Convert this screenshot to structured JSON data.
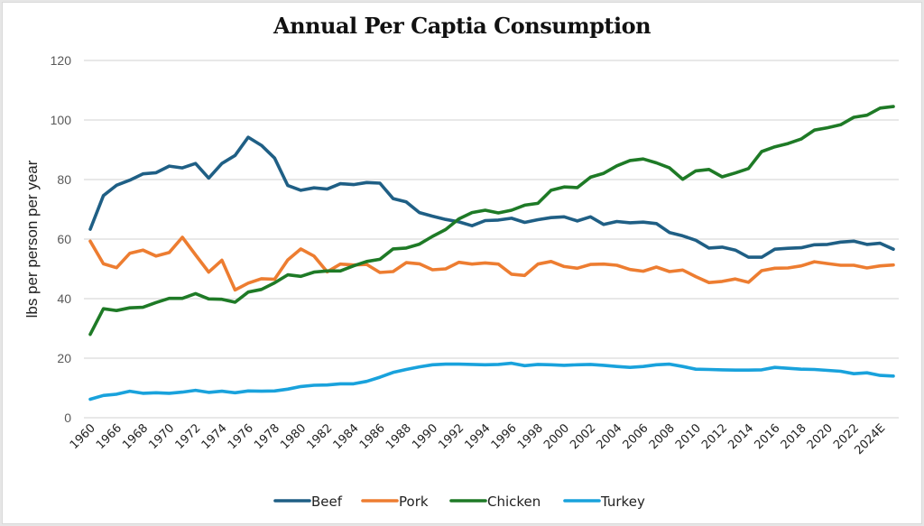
{
  "chart_data": {
    "type": "line",
    "title": "Annual Per Captia Consumption",
    "xlabel": "",
    "ylabel": "lbs per person per year",
    "ylim": [
      0,
      120
    ],
    "yticks": [
      0,
      20,
      40,
      60,
      80,
      100,
      120
    ],
    "grid": true,
    "legend_position": "bottom",
    "x": [
      "1960",
      "1965",
      "1966",
      "1967",
      "1968",
      "1969",
      "1970",
      "1971",
      "1972",
      "1973",
      "1974",
      "1975",
      "1976",
      "1977",
      "1978",
      "1979",
      "1980",
      "1981",
      "1982",
      "1983",
      "1984",
      "1985",
      "1986",
      "1987",
      "1988",
      "1989",
      "1990",
      "1991",
      "1992",
      "1993",
      "1994",
      "1995",
      "1996",
      "1997",
      "1998",
      "1999",
      "2000",
      "2001",
      "2002",
      "2003",
      "2004",
      "2005",
      "2006",
      "2007",
      "2008",
      "2009",
      "2010",
      "2011",
      "2012",
      "2013",
      "2014",
      "2015",
      "2016",
      "2017",
      "2018",
      "2019",
      "2020",
      "2021",
      "2022",
      "2023",
      "2024E",
      "2025E"
    ],
    "x_tick_labels_shown": [
      "1960",
      "1966",
      "1968",
      "1970",
      "1972",
      "1974",
      "1976",
      "1978",
      "1980",
      "1982",
      "1984",
      "1986",
      "1988",
      "1990",
      "1992",
      "1994",
      "1996",
      "1998",
      "2000",
      "2002",
      "2004",
      "2006",
      "2008",
      "2010",
      "2012",
      "2014",
      "2016",
      "2018",
      "2020",
      "2022",
      "2024E"
    ],
    "series": [
      {
        "name": "Beef",
        "color": "#1f5f85",
        "values": [
          63.3,
          74.6,
          78.1,
          79.8,
          81.9,
          82.3,
          84.5,
          83.9,
          85.4,
          80.5,
          85.4,
          88.1,
          94.2,
          91.5,
          87.2,
          78.0,
          76.4,
          77.2,
          76.8,
          78.6,
          78.3,
          79.0,
          78.8,
          73.6,
          72.5,
          68.9,
          67.7,
          66.6,
          65.8,
          64.5,
          66.2,
          66.4,
          67.0,
          65.6,
          66.5,
          67.2,
          67.5,
          66.1,
          67.5,
          64.9,
          65.9,
          65.5,
          65.7,
          65.2,
          62.2,
          61.1,
          59.6,
          57.0,
          57.3,
          56.3,
          53.9,
          53.9,
          56.6,
          56.9,
          57.1,
          58.1,
          58.2,
          59.0,
          59.3,
          58.2,
          58.6,
          56.6
        ]
      },
      {
        "name": "Pork",
        "color": "#ed7d31",
        "values": [
          59.3,
          51.7,
          50.4,
          55.2,
          56.3,
          54.3,
          55.5,
          60.6,
          54.7,
          48.9,
          52.9,
          42.9,
          45.2,
          46.7,
          46.5,
          53.0,
          56.7,
          54.3,
          49.0,
          51.6,
          51.3,
          51.5,
          48.8,
          49.1,
          52.1,
          51.7,
          49.7,
          50.0,
          52.2,
          51.6,
          52.0,
          51.6,
          48.2,
          47.8,
          51.6,
          52.5,
          50.8,
          50.2,
          51.5,
          51.6,
          51.2,
          49.8,
          49.2,
          50.6,
          49.1,
          49.6,
          47.4,
          45.4,
          45.8,
          46.6,
          45.5,
          49.4,
          50.2,
          50.3,
          51.0,
          52.4,
          51.8,
          51.2,
          51.2,
          50.3,
          51.0,
          51.3
        ]
      },
      {
        "name": "Chicken",
        "color": "#1e7a26",
        "values": [
          28.0,
          36.6,
          36.0,
          36.9,
          37.1,
          38.7,
          40.1,
          40.1,
          41.7,
          39.9,
          39.8,
          38.8,
          42.2,
          43.1,
          45.3,
          48.0,
          47.5,
          48.9,
          49.3,
          49.3,
          51.0,
          52.5,
          53.2,
          56.7,
          57.0,
          58.3,
          60.9,
          63.2,
          66.8,
          68.9,
          69.7,
          68.8,
          69.7,
          71.4,
          72.0,
          76.4,
          77.5,
          77.3,
          80.8,
          82.1,
          84.6,
          86.4,
          86.9,
          85.6,
          83.9,
          80.1,
          82.9,
          83.4,
          80.9,
          82.2,
          83.7,
          89.4,
          91.0,
          92.1,
          93.6,
          96.6,
          97.4,
          98.4,
          100.9,
          101.6,
          104.0,
          104.5
        ]
      },
      {
        "name": "Turkey",
        "color": "#19a2dc",
        "values": [
          6.2,
          7.5,
          7.9,
          8.9,
          8.2,
          8.4,
          8.2,
          8.6,
          9.2,
          8.5,
          8.9,
          8.4,
          9.0,
          8.9,
          9.0,
          9.6,
          10.5,
          10.9,
          11.0,
          11.4,
          11.4,
          12.2,
          13.6,
          15.2,
          16.2,
          17.1,
          17.8,
          18.0,
          18.0,
          17.9,
          17.8,
          17.9,
          18.3,
          17.5,
          17.9,
          17.8,
          17.6,
          17.8,
          17.9,
          17.6,
          17.2,
          16.9,
          17.2,
          17.8,
          18.0,
          17.2,
          16.3,
          16.2,
          16.1,
          16.0,
          16.0,
          16.1,
          16.9,
          16.6,
          16.3,
          16.2,
          15.9,
          15.6,
          14.8,
          15.1,
          14.2,
          14.0
        ]
      }
    ]
  }
}
